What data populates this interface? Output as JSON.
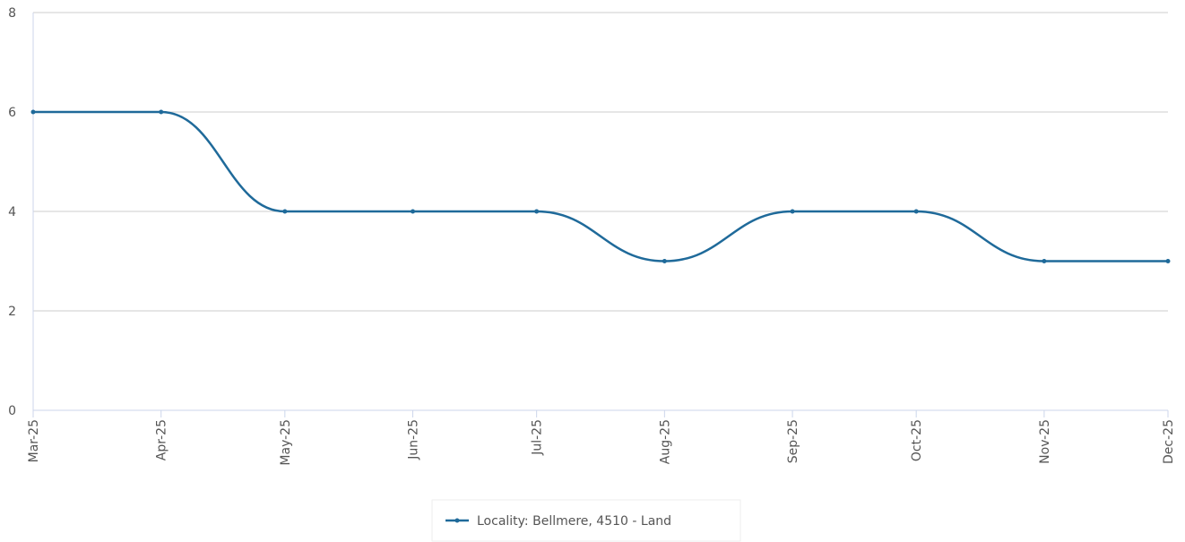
{
  "chart_data": {
    "type": "line",
    "categories": [
      "Mar-25",
      "Apr-25",
      "May-25",
      "Jun-25",
      "Jul-25",
      "Aug-25",
      "Sep-25",
      "Oct-25",
      "Nov-25",
      "Dec-25"
    ],
    "series": [
      {
        "name": "Locality: Bellmere, 4510 - Land",
        "color": "#1f6a9a",
        "values": [
          6,
          6,
          4,
          4,
          4,
          3,
          4,
          4,
          3,
          3
        ]
      }
    ],
    "ylim": [
      0,
      8
    ],
    "yticks": [
      0,
      2,
      4,
      6,
      8
    ],
    "grid": true,
    "legend": "bottom"
  }
}
